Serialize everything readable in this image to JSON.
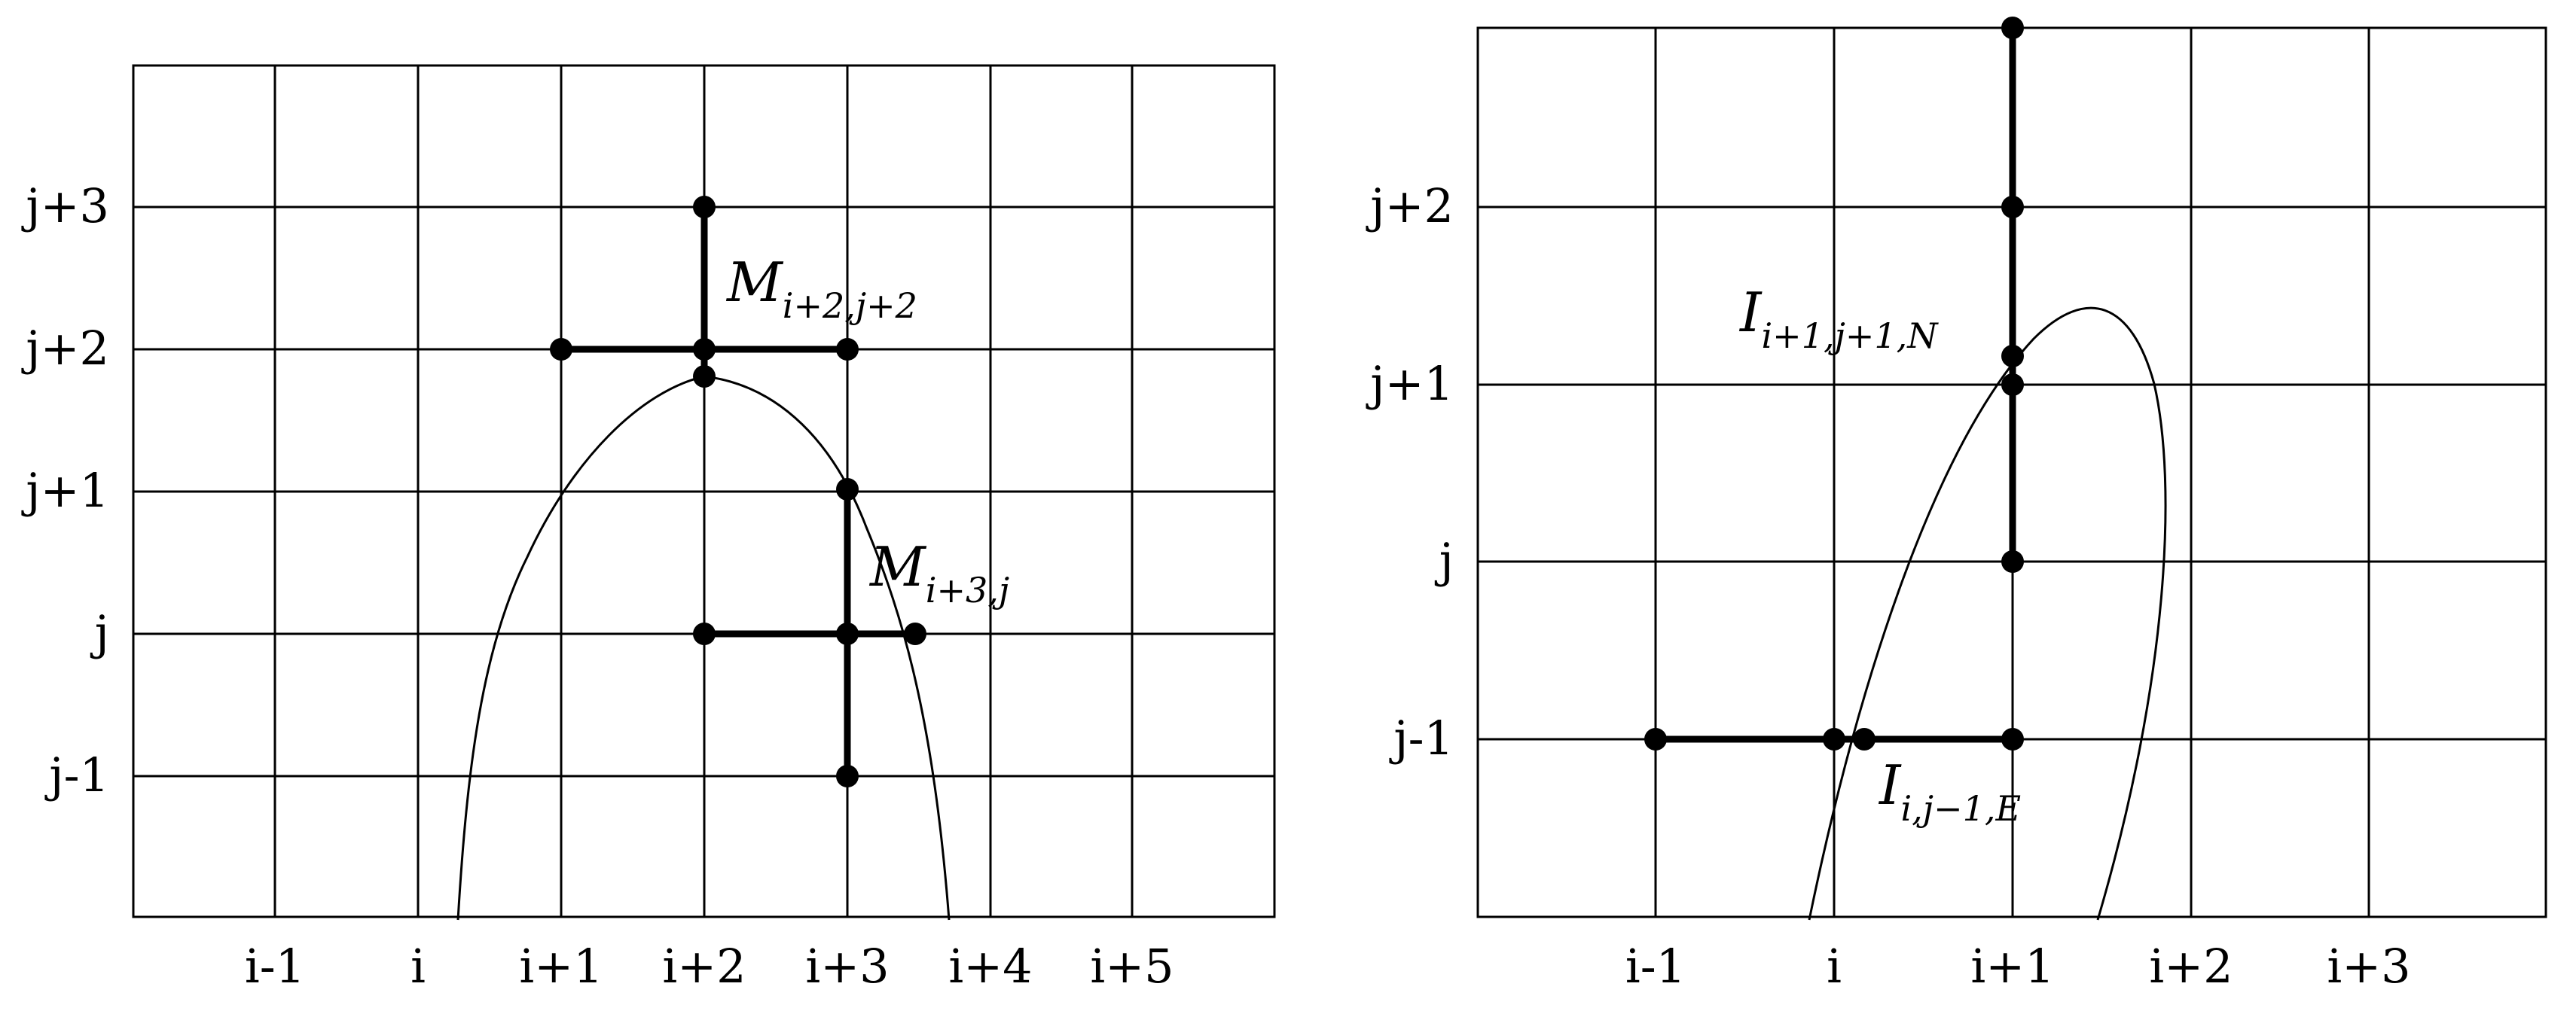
{
  "left": {
    "x_ticks": [
      "i-1",
      "i",
      "i+1",
      "i+2",
      "i+3",
      "i+4",
      "i+5"
    ],
    "y_ticks": [
      "j+3",
      "j+2",
      "j+1",
      "j",
      "j-1"
    ],
    "labels": [
      {
        "base": "M",
        "sub": "i+2,j+2"
      },
      {
        "base": "M",
        "sub": "i+3,j"
      }
    ]
  },
  "right": {
    "x_ticks": [
      "i-1",
      "i",
      "i+1",
      "i+2",
      "i+3"
    ],
    "y_ticks": [
      "j+2",
      "j+1",
      "j",
      "j-1"
    ],
    "labels": [
      {
        "base": "I",
        "sub": "i+1,j+1,N"
      },
      {
        "base": "I",
        "sub": "i,j−1,E"
      }
    ]
  }
}
